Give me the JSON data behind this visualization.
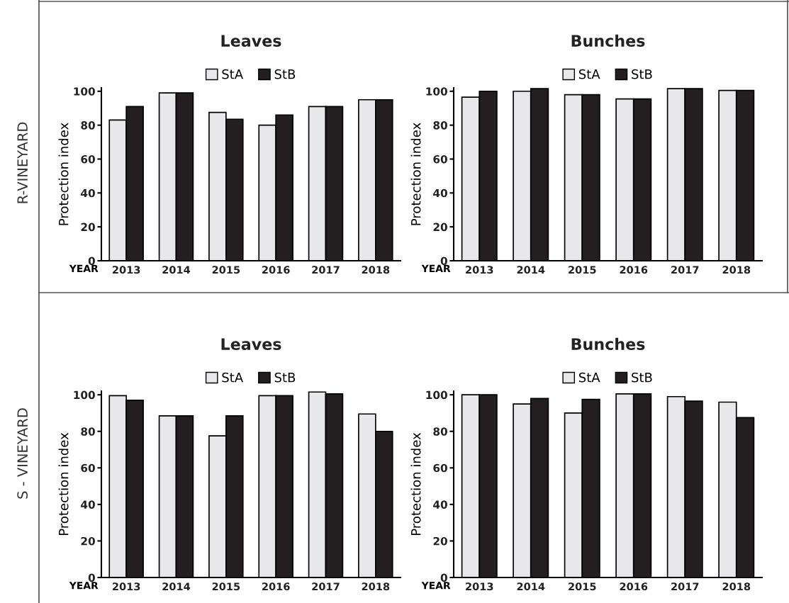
{
  "chart_data": [
    {
      "type": "bar",
      "title": "Leaves",
      "xlabel": "YEAR",
      "ylabel": "Protection index",
      "categories": [
        "2013",
        "2014",
        "2015",
        "2016",
        "2017",
        "2018"
      ],
      "series": [
        {
          "name": "StA",
          "color": "#e8e8ea",
          "values": [
            83,
            99,
            87.5,
            80,
            91,
            95
          ]
        },
        {
          "name": "StB",
          "color": "#231f20",
          "values": [
            91,
            99,
            83.5,
            86,
            91,
            95
          ]
        }
      ],
      "ylim": [
        0,
        102
      ],
      "yticks": [
        0,
        20,
        40,
        60,
        80,
        100
      ],
      "legend": "top",
      "grid": false,
      "annotations": [
        "R-VINEYARD"
      ]
    },
    {
      "type": "bar",
      "title": "Bunches",
      "xlabel": "YEAR",
      "ylabel": "Protection index",
      "categories": [
        "2013",
        "2014",
        "2015",
        "2016",
        "2017",
        "2018"
      ],
      "series": [
        {
          "name": "StA",
          "color": "#e8e8ea",
          "values": [
            96.5,
            100,
            98,
            95.5,
            101.5,
            100.5
          ]
        },
        {
          "name": "StB",
          "color": "#231f20",
          "values": [
            100,
            101.5,
            98,
            95.5,
            101.5,
            100.5
          ]
        }
      ],
      "ylim": [
        0,
        102
      ],
      "yticks": [
        0,
        20,
        40,
        60,
        80,
        100
      ],
      "legend": "top",
      "grid": false
    },
    {
      "type": "bar",
      "title": "Leaves",
      "xlabel": "YEAR",
      "ylabel": "Protection index",
      "categories": [
        "2013",
        "2014",
        "2015",
        "2016",
        "2017",
        "2018"
      ],
      "series": [
        {
          "name": "StA",
          "color": "#e8e8ea",
          "values": [
            99.5,
            88.5,
            77.5,
            99.5,
            101.5,
            89.5
          ]
        },
        {
          "name": "StB",
          "color": "#231f20",
          "values": [
            97,
            88.5,
            88.5,
            99.5,
            100.5,
            80
          ]
        }
      ],
      "ylim": [
        0,
        102
      ],
      "yticks": [
        0,
        20,
        40,
        60,
        80,
        100
      ],
      "legend": "top",
      "grid": false,
      "annotations": [
        "S - VINEYARD"
      ]
    },
    {
      "type": "bar",
      "title": "Bunches",
      "xlabel": "YEAR",
      "ylabel": "Protection index",
      "categories": [
        "2013",
        "2014",
        "2015",
        "2016",
        "2017",
        "2018"
      ],
      "series": [
        {
          "name": "StA",
          "color": "#e8e8ea",
          "values": [
            100,
            95,
            90,
            100.5,
            99,
            96
          ]
        },
        {
          "name": "StB",
          "color": "#231f20",
          "values": [
            100,
            98,
            97.5,
            100.5,
            96.5,
            87.5
          ]
        }
      ],
      "ylim": [
        0,
        102
      ],
      "yticks": [
        0,
        20,
        40,
        60,
        80,
        100
      ],
      "legend": "top",
      "grid": false
    }
  ]
}
